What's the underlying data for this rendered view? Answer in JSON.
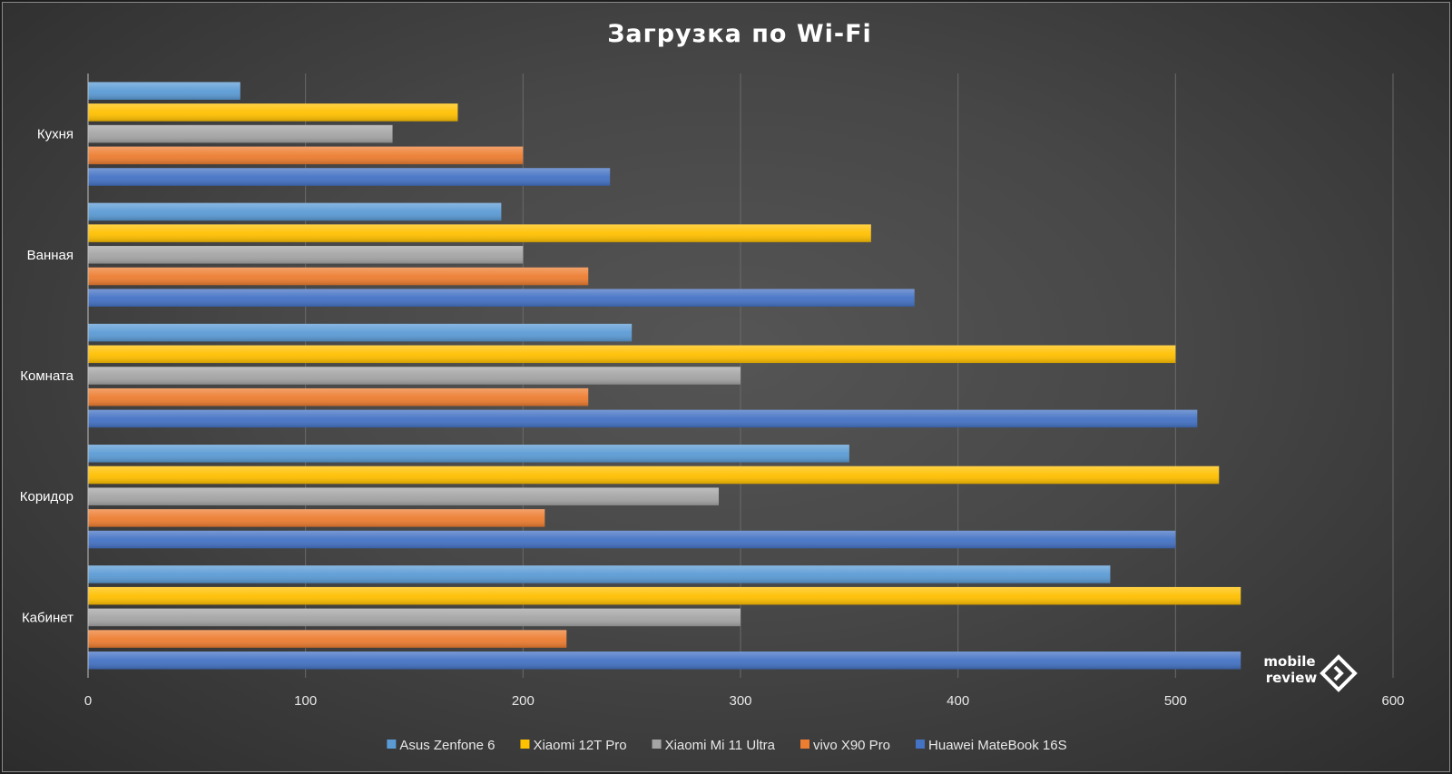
{
  "chart_data": {
    "type": "bar",
    "orientation": "horizontal",
    "title": "Загрузка по Wi-Fi",
    "categories": [
      "Кухня",
      "Ванная",
      "Комната",
      "Коридор",
      "Кабинет"
    ],
    "series": [
      {
        "name": "Asus Zenfone 6",
        "color": "#5b9bd5",
        "values": [
          70,
          190,
          250,
          350,
          470
        ]
      },
      {
        "name": "Xiaomi 12T Pro",
        "color": "#ffc000",
        "values": [
          170,
          360,
          500,
          520,
          530
        ]
      },
      {
        "name": "Xiaomi Mi 11 Ultra",
        "color": "#a5a5a5",
        "values": [
          140,
          200,
          300,
          290,
          300
        ]
      },
      {
        "name": "vivo X90 Pro",
        "color": "#ed7d31",
        "values": [
          200,
          230,
          230,
          210,
          220
        ]
      },
      {
        "name": "Huawei MateBook 16S",
        "color": "#4472c4",
        "values": [
          240,
          380,
          510,
          500,
          530
        ]
      }
    ],
    "xlim": [
      0,
      600
    ],
    "xticks": [
      0,
      100,
      200,
      300,
      400,
      500,
      600
    ],
    "grid": true,
    "legend": "bottom"
  },
  "watermark": {
    "line1": "mobile",
    "line2": "review"
  }
}
